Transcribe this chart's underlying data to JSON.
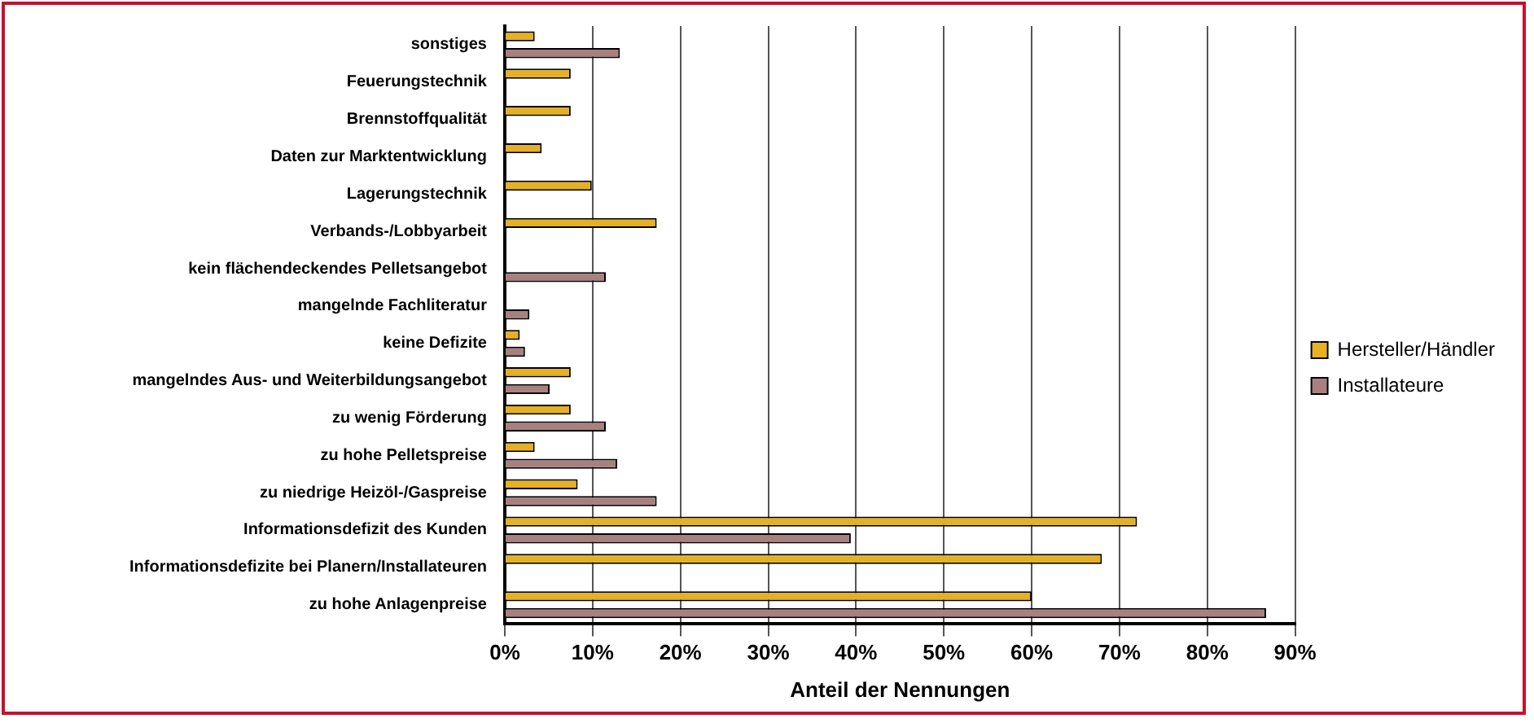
{
  "chart_data": {
    "type": "bar",
    "orientation": "horizontal",
    "xlabel": "Anteil der Nennungen",
    "categories": [
      "sonstiges",
      "Feuerungstechnik",
      "Brennstoffqualität",
      "Daten zur Marktentwicklung",
      "Lagerungstechnik",
      "Verbands-/Lobbyarbeit",
      "kein flächendeckendes Pelletsangebot",
      "mangelnde Fachliteratur",
      "keine Defizite",
      "mangelndes Aus- und Weiterbildungsangebot",
      "zu wenig Förderung",
      "zu hohe Pelletspreise",
      "zu niedrige Heizöl-/Gaspreise",
      "Informationsdefizit des Kunden",
      "Informationsdefizite bei Planern/Installateuren",
      "zu hohe Anlagenpreise"
    ],
    "series": [
      {
        "name": "Hersteller/Händler",
        "color": "#e6b024",
        "values": [
          3.4,
          7.5,
          7.5,
          4.2,
          9.9,
          17.3,
          null,
          null,
          1.7,
          7.5,
          7.5,
          3.4,
          8.3,
          72,
          68,
          60
        ]
      },
      {
        "name": "Installateure",
        "color": "#a88080",
        "values": [
          13.1,
          null,
          null,
          null,
          null,
          null,
          11.5,
          2.8,
          2.3,
          5.1,
          11.5,
          12.8,
          17.3,
          39.4,
          null,
          86.7
        ]
      }
    ],
    "xlim": [
      0,
      90
    ],
    "xticks": [
      {
        "value": 0,
        "label": "0%"
      },
      {
        "value": 10,
        "label": "10%"
      },
      {
        "value": 20,
        "label": "20%"
      },
      {
        "value": 30,
        "label": "30%"
      },
      {
        "value": 40,
        "label": "40%"
      },
      {
        "value": 50,
        "label": "50%"
      },
      {
        "value": 60,
        "label": "60%"
      },
      {
        "value": 70,
        "label": "70%"
      },
      {
        "value": 80,
        "label": "80%"
      },
      {
        "value": 90,
        "label": "90%"
      }
    ],
    "grid": "x",
    "legend": "right"
  }
}
